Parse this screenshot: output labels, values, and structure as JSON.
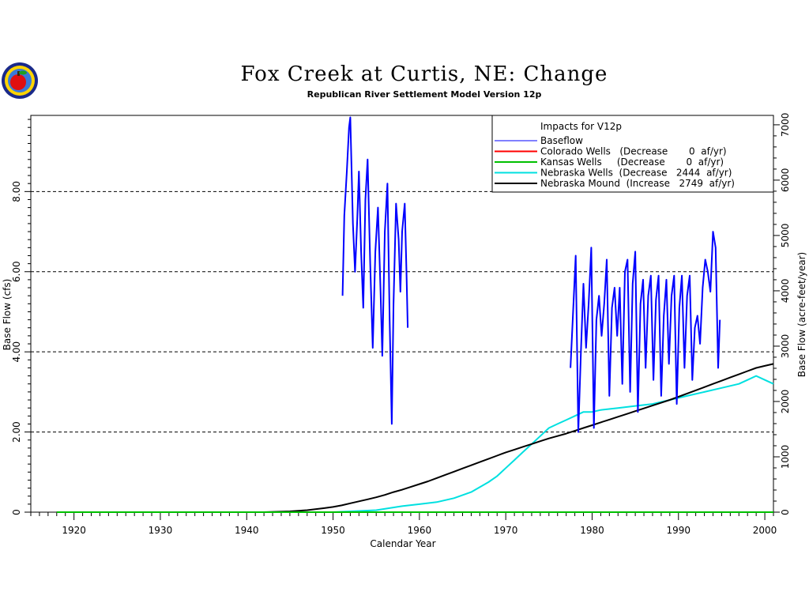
{
  "chart_data": {
    "type": "line",
    "title": "Fox Creek at Curtis, NE: Change",
    "subtitle": "Republican River Settlement Model Version 12p",
    "xlabel": "Calendar Year",
    "ylabel": "Base Flow (cfs)",
    "ylabel_right": "Base Flow (acre-feet/year)",
    "xlim": [
      1915,
      2001
    ],
    "ylim": [
      0,
      9.9
    ],
    "ylim_right": [
      0,
      7170
    ],
    "grid": "dashed horizontal at y tick values",
    "legend_position": "top-right",
    "legend_title": "Impacts for V12p",
    "x_ticks": [
      "1920",
      "1930",
      "1940",
      "1950",
      "1960",
      "1970",
      "1980",
      "1990",
      "2000"
    ],
    "y_ticks": [
      "0",
      "2.00",
      "4.00",
      "6.00",
      "8.00"
    ],
    "y_ticks_right": [
      "0",
      "1000",
      "2000",
      "3000",
      "4000",
      "5000",
      "6000",
      "7000"
    ],
    "series": [
      {
        "name": "Baseflow",
        "legend_label": "Baseflow",
        "color": "#0000ff",
        "points": [
          [
            1951.1,
            5.4
          ],
          [
            1951.3,
            7.4
          ],
          [
            1951.6,
            8.5
          ],
          [
            1951.85,
            9.6
          ],
          [
            1952.0,
            9.85
          ],
          [
            1952.3,
            7.2
          ],
          [
            1952.55,
            6.0
          ],
          [
            1952.8,
            7.3
          ],
          [
            1953.0,
            8.5
          ],
          [
            1953.25,
            6.5
          ],
          [
            1953.5,
            5.1
          ],
          [
            1953.75,
            7.8
          ],
          [
            1954.0,
            8.8
          ],
          [
            1954.3,
            6.2
          ],
          [
            1954.6,
            4.1
          ],
          [
            1954.9,
            6.5
          ],
          [
            1955.2,
            7.6
          ],
          [
            1955.5,
            5.5
          ],
          [
            1955.7,
            3.9
          ],
          [
            1956.0,
            7.0
          ],
          [
            1956.3,
            8.2
          ],
          [
            1956.55,
            4.8
          ],
          [
            1956.8,
            2.2
          ],
          [
            1957.0,
            5.2
          ],
          [
            1957.3,
            7.7
          ],
          [
            1957.6,
            6.8
          ],
          [
            1957.8,
            5.5
          ],
          [
            1958.0,
            7.0
          ],
          [
            1958.3,
            7.7
          ],
          [
            1958.5,
            6.0
          ],
          [
            1958.65,
            4.6
          ],
          null,
          [
            1977.5,
            3.6
          ],
          [
            1977.8,
            5.0
          ],
          [
            1978.1,
            6.4
          ],
          [
            1978.4,
            2.0
          ],
          [
            1978.7,
            4.0
          ],
          [
            1979.0,
            5.7
          ],
          [
            1979.3,
            4.1
          ],
          [
            1979.6,
            5.2
          ],
          [
            1979.9,
            6.6
          ],
          [
            1980.2,
            2.1
          ],
          [
            1980.5,
            4.8
          ],
          [
            1980.8,
            5.4
          ],
          [
            1981.1,
            4.4
          ],
          [
            1981.4,
            5.2
          ],
          [
            1981.7,
            6.3
          ],
          [
            1982.0,
            2.9
          ],
          [
            1982.3,
            5.1
          ],
          [
            1982.6,
            5.6
          ],
          [
            1982.9,
            4.4
          ],
          [
            1983.2,
            5.6
          ],
          [
            1983.5,
            3.2
          ],
          [
            1983.8,
            6.0
          ],
          [
            1984.1,
            6.3
          ],
          [
            1984.4,
            3.0
          ],
          [
            1984.7,
            5.7
          ],
          [
            1985.0,
            6.5
          ],
          [
            1985.3,
            2.5
          ],
          [
            1985.6,
            5.2
          ],
          [
            1985.9,
            5.8
          ],
          [
            1986.2,
            3.6
          ],
          [
            1986.5,
            5.4
          ],
          [
            1986.8,
            5.9
          ],
          [
            1987.1,
            3.3
          ],
          [
            1987.4,
            5.3
          ],
          [
            1987.7,
            5.9
          ],
          [
            1988.0,
            2.9
          ],
          [
            1988.3,
            4.9
          ],
          [
            1988.6,
            5.8
          ],
          [
            1988.9,
            3.7
          ],
          [
            1989.2,
            5.4
          ],
          [
            1989.5,
            5.9
          ],
          [
            1989.8,
            2.7
          ],
          [
            1990.1,
            5.1
          ],
          [
            1990.4,
            5.9
          ],
          [
            1990.7,
            3.6
          ],
          [
            1991.0,
            5.4
          ],
          [
            1991.3,
            5.9
          ],
          [
            1991.6,
            3.3
          ],
          [
            1991.9,
            4.6
          ],
          [
            1992.2,
            4.9
          ],
          [
            1992.5,
            4.2
          ],
          [
            1992.8,
            5.6
          ],
          [
            1993.1,
            6.3
          ],
          [
            1993.4,
            6.0
          ],
          [
            1993.7,
            5.5
          ],
          [
            1994.0,
            7.0
          ],
          [
            1994.3,
            6.6
          ],
          [
            1994.6,
            3.6
          ],
          [
            1994.8,
            4.8
          ]
        ]
      },
      {
        "name": "Colorado Wells",
        "legend_label": "Colorado Wells   (Decrease       0  af/yr)",
        "color": "#ff0000",
        "points": [
          [
            1918,
            0
          ],
          [
            2001,
            0
          ]
        ]
      },
      {
        "name": "Kansas Wells",
        "legend_label": "Kansas Wells     (Decrease       0  af/yr)",
        "color": "#00c000",
        "points": [
          [
            1918,
            0
          ],
          [
            2001,
            0
          ]
        ]
      },
      {
        "name": "Nebraska Wells",
        "legend_label": "Nebraska Wells  (Decrease   2444  af/yr)",
        "color": "#00e0e0",
        "points": [
          [
            1918,
            0
          ],
          [
            1950,
            0
          ],
          [
            1955,
            0.05
          ],
          [
            1958,
            0.15
          ],
          [
            1960,
            0.2
          ],
          [
            1962,
            0.25
          ],
          [
            1964,
            0.35
          ],
          [
            1966,
            0.5
          ],
          [
            1968,
            0.75
          ],
          [
            1969,
            0.9
          ],
          [
            1970,
            1.1
          ],
          [
            1971,
            1.3
          ],
          [
            1972,
            1.5
          ],
          [
            1973,
            1.7
          ],
          [
            1974,
            1.9
          ],
          [
            1975,
            2.1
          ],
          [
            1976,
            2.2
          ],
          [
            1977,
            2.3
          ],
          [
            1978,
            2.4
          ],
          [
            1979,
            2.5
          ],
          [
            1980,
            2.5
          ],
          [
            1981,
            2.55
          ],
          [
            1983,
            2.6
          ],
          [
            1985,
            2.65
          ],
          [
            1987,
            2.7
          ],
          [
            1989,
            2.8
          ],
          [
            1991,
            2.9
          ],
          [
            1993,
            3.0
          ],
          [
            1995,
            3.1
          ],
          [
            1997,
            3.2
          ],
          [
            1998,
            3.3
          ],
          [
            1999,
            3.4
          ],
          [
            2000,
            3.3
          ],
          [
            2001,
            3.2
          ]
        ]
      },
      {
        "name": "Nebraska Mound",
        "legend_label": "Nebraska Mound  (Increase   2749  af/yr)",
        "color": "#000000",
        "points": [
          [
            1918,
            0
          ],
          [
            1942,
            0
          ],
          [
            1945,
            0.02
          ],
          [
            1947,
            0.05
          ],
          [
            1949,
            0.1
          ],
          [
            1950,
            0.13
          ],
          [
            1951,
            0.17
          ],
          [
            1952,
            0.22
          ],
          [
            1953,
            0.27
          ],
          [
            1954,
            0.32
          ],
          [
            1955,
            0.37
          ],
          [
            1956,
            0.43
          ],
          [
            1957,
            0.5
          ],
          [
            1958,
            0.56
          ],
          [
            1959,
            0.63
          ],
          [
            1960,
            0.7
          ],
          [
            1961,
            0.77
          ],
          [
            1962,
            0.85
          ],
          [
            1963,
            0.93
          ],
          [
            1964,
            1.01
          ],
          [
            1965,
            1.09
          ],
          [
            1966,
            1.17
          ],
          [
            1967,
            1.25
          ],
          [
            1968,
            1.33
          ],
          [
            1969,
            1.41
          ],
          [
            1970,
            1.49
          ],
          [
            1971,
            1.56
          ],
          [
            1972,
            1.63
          ],
          [
            1973,
            1.7
          ],
          [
            1974,
            1.77
          ],
          [
            1975,
            1.84
          ],
          [
            1976,
            1.9
          ],
          [
            1977,
            1.96
          ],
          [
            1978,
            2.03
          ],
          [
            1979,
            2.1
          ],
          [
            1980,
            2.17
          ],
          [
            1981,
            2.24
          ],
          [
            1982,
            2.31
          ],
          [
            1983,
            2.38
          ],
          [
            1984,
            2.45
          ],
          [
            1985,
            2.52
          ],
          [
            1986,
            2.59
          ],
          [
            1987,
            2.66
          ],
          [
            1988,
            2.73
          ],
          [
            1989,
            2.8
          ],
          [
            1990,
            2.88
          ],
          [
            1991,
            2.96
          ],
          [
            1992,
            3.04
          ],
          [
            1993,
            3.12
          ],
          [
            1994,
            3.2
          ],
          [
            1995,
            3.28
          ],
          [
            1996,
            3.36
          ],
          [
            1997,
            3.44
          ],
          [
            1998,
            3.52
          ],
          [
            1999,
            3.6
          ],
          [
            2000,
            3.65
          ],
          [
            2001,
            3.7
          ]
        ]
      }
    ]
  }
}
